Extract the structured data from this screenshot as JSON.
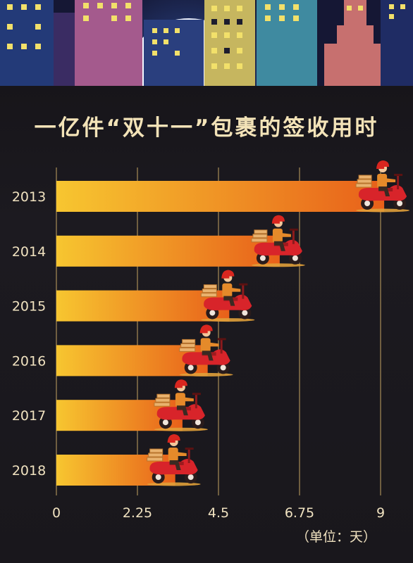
{
  "title": "一亿件“双十一”包裹的签收用时",
  "unit_label": "（单位：天）",
  "colors": {
    "bar_start": "#f7c630",
    "bar_end": "#e8601a",
    "grid": "#a88d57",
    "text": "#f0e2c0",
    "scooter": "#d8242a",
    "helmet": "#d9261f"
  },
  "icons": [
    "city-skyline",
    "delivery-scooter-icon"
  ],
  "chart_data": {
    "type": "bar",
    "orientation": "horizontal",
    "title": "一亿件“双十一”包裹的签收用时",
    "xlabel": "（单位：天）",
    "ylabel": "",
    "categories": [
      "2013",
      "2014",
      "2015",
      "2016",
      "2017",
      "2018"
    ],
    "values": [
      9.1,
      6.2,
      4.8,
      4.2,
      3.5,
      3.3
    ],
    "xlim": [
      0,
      9
    ],
    "xticks": [
      "0",
      "2.25",
      "4.5",
      "6.75",
      "9"
    ],
    "grid": "vertical lines"
  }
}
